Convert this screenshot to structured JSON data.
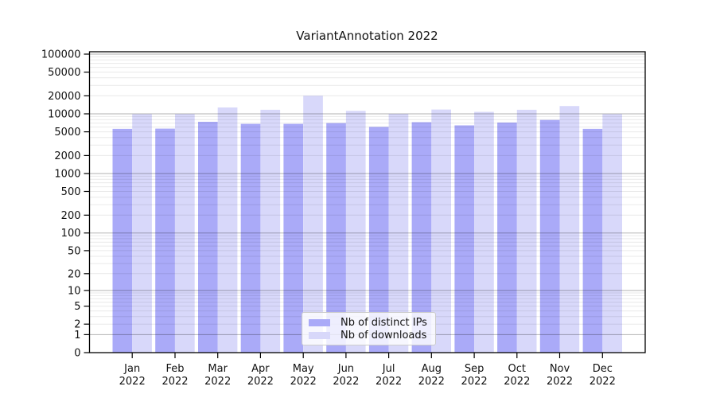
{
  "chart_data": {
    "type": "bar",
    "title": "VariantAnnotation 2022",
    "scale": "log10(1+x)",
    "categories": [
      "Jan",
      "Feb",
      "Mar",
      "Apr",
      "May",
      "Jun",
      "Jul",
      "Aug",
      "Sep",
      "Oct",
      "Nov",
      "Dec"
    ],
    "year": "2022",
    "series": [
      {
        "name": "Nb of distinct IPs",
        "color": "#aaaaf8",
        "values": [
          5600,
          5650,
          7350,
          6800,
          6800,
          7000,
          6050,
          7250,
          6400,
          7150,
          7900,
          5600
        ]
      },
      {
        "name": "Nb of downloads",
        "color": "#d8d8fa",
        "values": [
          9900,
          9950,
          12800,
          11700,
          20100,
          11200,
          10000,
          11800,
          10800,
          11700,
          13500,
          9900
        ]
      }
    ],
    "y_ticks": [
      0,
      1,
      2,
      5,
      10,
      20,
      50,
      100,
      200,
      500,
      1000,
      2000,
      5000,
      10000,
      20000,
      50000,
      100000
    ],
    "ylim": [
      0,
      100000
    ],
    "xlabel": "",
    "ylabel": "",
    "grid": "horizontal major (powers of 10) and minor log gridlines, drawn over bars",
    "legend_position": "lower center"
  },
  "colors": {
    "axis": "#000000",
    "tick_label": "#111111",
    "major_grid": "rgba(0,0,0,0.30)",
    "minor_grid": "rgba(0,0,0,0.085)"
  }
}
